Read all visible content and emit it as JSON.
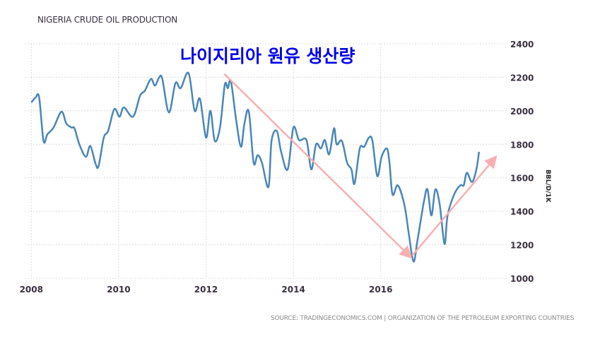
{
  "chart_data": {
    "type": "line",
    "title": "NIGERIA CRUDE OIL PRODUCTION",
    "annotation_title": "나이지리아 원유 생산량",
    "ylabel": "BBL/D/1K",
    "xlabel": "",
    "source": "SOURCE: TRADINGECONOMICS.COM | ORGANIZATION OF THE PETROLEUM EXPORTING COUNTRIES",
    "ylim": [
      1000,
      2400
    ],
    "xlim": [
      2007.85,
      2018.9
    ],
    "yticks": [
      1000,
      1200,
      1400,
      1600,
      1800,
      2000,
      2200,
      2400
    ],
    "xticks": [
      2008,
      2010,
      2012,
      2014,
      2016
    ],
    "grid": true,
    "line_color": "#4a86b8",
    "arrow_color": "#f7b0b0",
    "series": [
      {
        "name": "Crude Oil Production",
        "x": [
          2008.0,
          2008.1,
          2008.18,
          2008.28,
          2008.37,
          2008.51,
          2008.69,
          2008.8,
          2008.92,
          2008.99,
          2009.1,
          2009.25,
          2009.35,
          2009.47,
          2009.54,
          2009.66,
          2009.76,
          2009.9,
          2010.02,
          2010.12,
          2010.33,
          2010.49,
          2010.6,
          2010.74,
          2010.83,
          2010.93,
          2011.0,
          2011.15,
          2011.3,
          2011.42,
          2011.6,
          2011.74,
          2011.86,
          2012.0,
          2012.1,
          2012.2,
          2012.32,
          2012.43,
          2012.5,
          2012.57,
          2012.69,
          2012.8,
          2012.88,
          2012.98,
          2013.09,
          2013.18,
          2013.28,
          2013.43,
          2013.5,
          2013.62,
          2013.72,
          2013.87,
          2014.0,
          2014.13,
          2014.3,
          2014.41,
          2014.52,
          2014.63,
          2014.72,
          2014.82,
          2014.93,
          2014.99,
          2015.11,
          2015.23,
          2015.33,
          2015.4,
          2015.52,
          2015.62,
          2015.73,
          2015.81,
          2015.92,
          2016.02,
          2016.14,
          2016.2,
          2016.27,
          2016.39,
          2016.54,
          2016.64,
          2016.75,
          2016.84,
          2016.99,
          2017.07,
          2017.16,
          2017.25,
          2017.35,
          2017.46,
          2017.53,
          2017.68,
          2017.82,
          2017.9,
          2017.97,
          2018.09,
          2018.19,
          2018.25
        ],
        "values": [
          2050,
          2080,
          2080,
          1820,
          1860,
          1900,
          1995,
          1925,
          1900,
          1895,
          1800,
          1725,
          1790,
          1685,
          1670,
          1840,
          1880,
          2010,
          1965,
          2020,
          1965,
          2090,
          2120,
          2190,
          2150,
          2200,
          2190,
          1990,
          2165,
          2135,
          2225,
          2000,
          2072,
          1840,
          2000,
          1820,
          1900,
          2155,
          2135,
          2177,
          1945,
          1785,
          1925,
          1995,
          1690,
          1735,
          1690,
          1545,
          1820,
          1880,
          1755,
          1650,
          1900,
          1825,
          1825,
          1650,
          1800,
          1775,
          1825,
          1740,
          1895,
          1800,
          1820,
          1690,
          1650,
          1565,
          1775,
          1785,
          1840,
          1820,
          1610,
          1725,
          1775,
          1690,
          1500,
          1555,
          1440,
          1270,
          1100,
          1225,
          1460,
          1530,
          1375,
          1530,
          1440,
          1205,
          1375,
          1500,
          1555,
          1555,
          1630,
          1575,
          1650,
          1755
        ]
      }
    ],
    "annotations": [
      {
        "type": "arrow",
        "from": [
          2012.42,
          2220
        ],
        "to": [
          2016.67,
          1130
        ]
      },
      {
        "type": "arrow",
        "from": [
          2016.72,
          1135
        ],
        "to": [
          2018.62,
          1720
        ]
      }
    ]
  }
}
